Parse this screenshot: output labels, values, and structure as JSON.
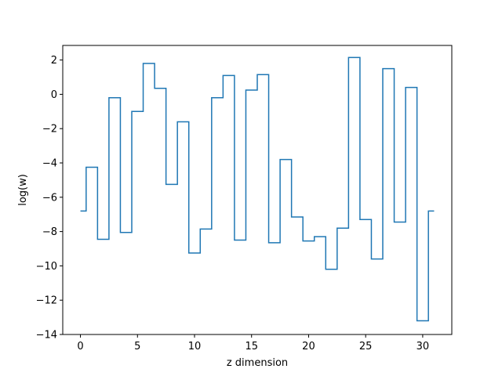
{
  "chart_data": {
    "type": "line",
    "drawstyle": "steps-mid",
    "xlabel": "z dimension",
    "ylabel": "log(w)",
    "xlim": [
      -1.55,
      32.55
    ],
    "ylim": [
      -14,
      2.85
    ],
    "xticks": [
      0,
      5,
      10,
      15,
      20,
      25,
      30
    ],
    "xtick_labels": [
      "0",
      "5",
      "10",
      "15",
      "20",
      "25",
      "30"
    ],
    "yticks": [
      -14,
      -12,
      -10,
      -8,
      -6,
      -4,
      -2,
      0,
      2
    ],
    "ytick_labels": [
      "−14",
      "−12",
      "−10",
      "−8",
      "−6",
      "−4",
      "−2",
      "0",
      "2"
    ],
    "grid": false,
    "series": [
      {
        "color": "#1f77b4",
        "x": [
          0,
          1,
          2,
          3,
          4,
          5,
          6,
          7,
          8,
          9,
          10,
          11,
          12,
          13,
          14,
          15,
          16,
          17,
          18,
          19,
          20,
          21,
          22,
          23,
          24,
          25,
          26,
          27,
          28,
          29,
          30,
          31
        ],
        "y": [
          -6.8,
          -4.25,
          -8.45,
          -0.2,
          -8.05,
          -1.0,
          1.8,
          0.35,
          -5.25,
          -1.6,
          -9.25,
          -7.85,
          -0.2,
          1.1,
          -8.5,
          0.25,
          1.15,
          -8.65,
          -3.8,
          -7.15,
          -8.55,
          -8.3,
          -10.2,
          -7.8,
          2.15,
          -7.3,
          -9.6,
          1.5,
          -7.45,
          0.4,
          -13.2,
          -6.8
        ]
      }
    ]
  }
}
